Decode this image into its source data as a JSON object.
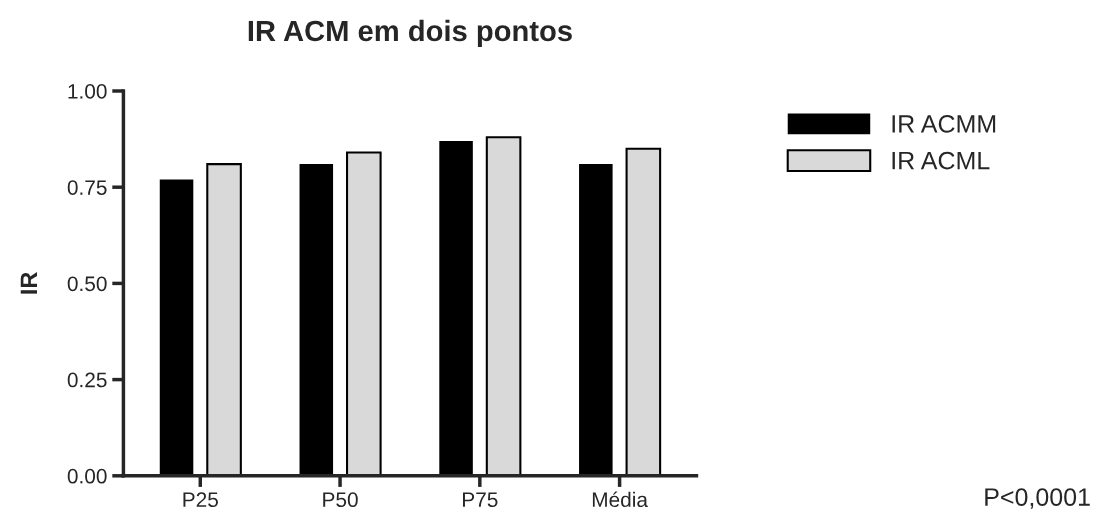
{
  "chart_data": {
    "type": "bar",
    "title": "IR ACM em dois pontos",
    "ylabel": "IR",
    "categories": [
      "P25",
      "P50",
      "P75",
      "Média"
    ],
    "series": [
      {
        "name": "IR ACMM",
        "color": "#000000",
        "values": [
          0.77,
          0.81,
          0.87,
          0.81
        ]
      },
      {
        "name": "IR ACML",
        "color": "#d9d9d9",
        "values": [
          0.81,
          0.84,
          0.88,
          0.85
        ]
      }
    ],
    "ylim": [
      0,
      1
    ],
    "yticks": [
      {
        "value": 0,
        "label": "0.00"
      },
      {
        "value": 0.25,
        "label": "0.25"
      },
      {
        "value": 0.5,
        "label": "0.50"
      },
      {
        "value": 0.75,
        "label": "0.75"
      },
      {
        "value": 1,
        "label": "1.00"
      }
    ],
    "grid": false,
    "legend": "top right",
    "annotations": [
      "P<0,0001"
    ]
  }
}
